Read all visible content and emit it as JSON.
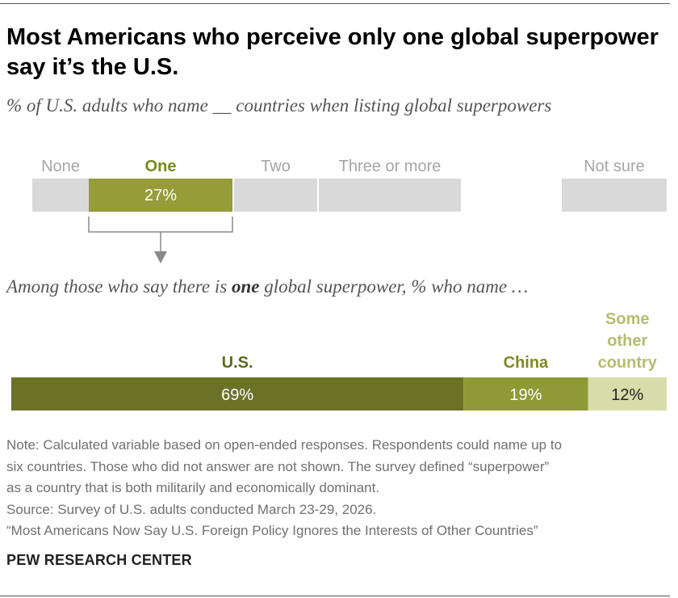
{
  "header": {
    "title": "Most Americans who perceive only one global superpower say it’s the U.S.",
    "subtitle": "% of U.S. adults who name __ countries when listing global superpowers",
    "subtitle2_before": "Among those who say there is ",
    "subtitle2_emphasis": "one",
    "subtitle2_after": " global superpower, % who name …"
  },
  "chart_data": [
    {
      "type": "bar",
      "orientation": "horizontal-stacked",
      "categories": [
        "None",
        "One",
        "Two",
        "Three or more",
        "Not sure"
      ],
      "values": [
        null,
        27,
        null,
        null,
        null
      ],
      "value_labels": [
        "",
        "27%",
        "",
        "",
        ""
      ],
      "highlighted": "One",
      "colors": {
        "highlight": "#959c38",
        "muted": "#d9d9d9",
        "highlight_label": "#7a8a1d",
        "muted_label": "#a6a6a6"
      }
    },
    {
      "type": "bar",
      "orientation": "horizontal-stacked",
      "categories": [
        "U.S.",
        "China",
        "Some other country"
      ],
      "values": [
        69,
        19,
        12
      ],
      "value_labels": [
        "69%",
        "19%",
        "12%"
      ],
      "colors": [
        "#6b7228",
        "#8f9a36",
        "#d7dcab"
      ],
      "label_colors": [
        "#5f6822",
        "#7f8a22",
        "#b6bd6e"
      ]
    }
  ],
  "footer": {
    "notes": [
      "Note: Calculated variable based on open-ended responses. Respondents could name up to",
      "six countries. Those who did not answer are not shown. The survey defined “superpower”",
      "as a country that is both militarily and economically dominant.",
      "Source: Survey of U.S. adults conducted March 23-29, 2026.",
      "“Most Americans Now Say U.S. Foreign Policy Ignores the Interests of Other Countries”"
    ],
    "brand": "PEW RESEARCH CENTER"
  }
}
